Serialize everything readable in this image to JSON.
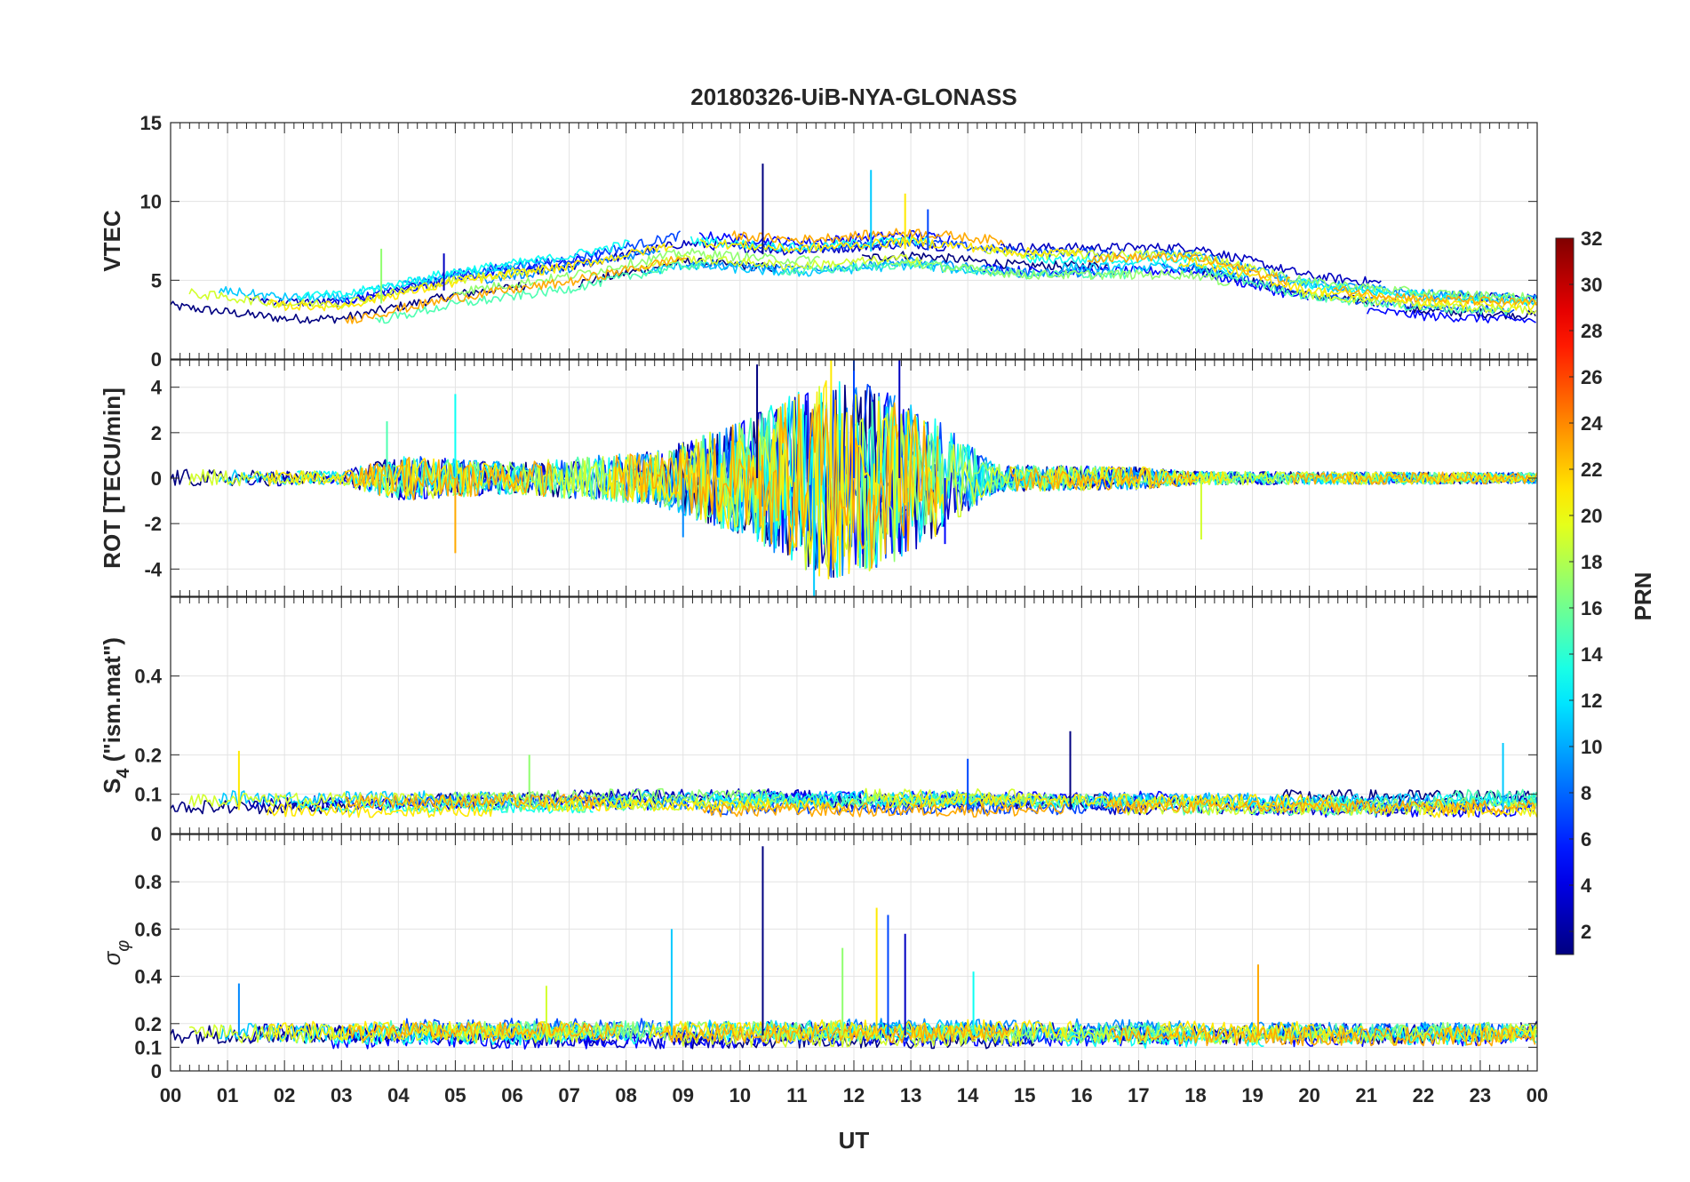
{
  "chart_data": {
    "title": "20180326-UiB-NYA-GLONASS",
    "xlabel": "UT",
    "xlim": [
      0,
      24
    ],
    "xticklabels": [
      "00",
      "01",
      "02",
      "03",
      "04",
      "05",
      "06",
      "07",
      "08",
      "09",
      "10",
      "11",
      "12",
      "13",
      "14",
      "15",
      "16",
      "17",
      "18",
      "19",
      "20",
      "21",
      "22",
      "23",
      "00"
    ],
    "colorbar": {
      "label": "PRN",
      "range": [
        1,
        32
      ],
      "ticks": [
        "2",
        "4",
        "6",
        "8",
        "10",
        "12",
        "14",
        "16",
        "18",
        "20",
        "22",
        "24",
        "26",
        "28",
        "30",
        "32"
      ]
    },
    "panels": [
      {
        "id": "vtec",
        "type": "line",
        "ylabel": "VTEC",
        "ylim": [
          0,
          15
        ],
        "yticks": [
          0,
          5,
          10,
          15
        ],
        "yticklabels": [
          "0",
          "5",
          "10",
          "15"
        ],
        "profile_hours": [
          0,
          2,
          3,
          5,
          7,
          9,
          11,
          13,
          15,
          18,
          20,
          22,
          24
        ],
        "profile_values": [
          3.8,
          3.0,
          3.0,
          4.5,
          5.5,
          7.0,
          6.5,
          7.0,
          6.3,
          6.3,
          4.5,
          3.8,
          3.5
        ],
        "spikes": [
          [
            10.4,
            12.4
          ],
          [
            12.3,
            12.0
          ],
          [
            12.9,
            10.5
          ],
          [
            13.3,
            9.5
          ],
          [
            3.7,
            7.0
          ],
          [
            4.8,
            6.7
          ]
        ]
      },
      {
        "id": "rot",
        "type": "line",
        "ylabel": "ROT [TECU/min]",
        "ylim": [
          -5.2,
          5.2
        ],
        "yticks": [
          -4,
          -2,
          0,
          2,
          4
        ],
        "yticklabels": [
          "-4",
          "-2",
          "0",
          "2",
          "4"
        ],
        "profile_hours": [
          0,
          3,
          4,
          6,
          8.5,
          10,
          11.5,
          12.5,
          13.5,
          14.5,
          17,
          18,
          24
        ],
        "profile_values": [
          0.4,
          0.3,
          1.0,
          0.7,
          1.2,
          2.5,
          4.5,
          4.0,
          2.5,
          0.6,
          0.5,
          0.3,
          0.25
        ],
        "spikes": [
          [
            10.3,
            5.0
          ],
          [
            11.3,
            -5.2
          ],
          [
            11.6,
            5.2
          ],
          [
            12.0,
            5.2
          ],
          [
            12.2,
            -4.0
          ],
          [
            12.8,
            5.2
          ],
          [
            5.0,
            3.7
          ],
          [
            5.0,
            -3.3
          ],
          [
            9.0,
            -2.6
          ],
          [
            18.1,
            -2.7
          ],
          [
            13.6,
            -2.9
          ],
          [
            3.8,
            2.5
          ]
        ]
      },
      {
        "id": "s4",
        "type": "line",
        "ylabel": "S4 (\"ism.mat\")",
        "ylabel_main": "S",
        "ylabel_sub": "4",
        "ylabel_tail": " (\"ism.mat\")",
        "ylim": [
          0,
          0.6
        ],
        "yticks": [
          0,
          0.1,
          0.2,
          0.4
        ],
        "yticklabels": [
          "0",
          "0.1",
          "0.2",
          "0.4"
        ],
        "profile_hours": [
          0,
          24
        ],
        "profile_values": [
          0.06,
          0.06
        ],
        "spikes": [
          [
            15.8,
            0.26
          ],
          [
            23.4,
            0.23
          ],
          [
            1.2,
            0.21
          ],
          [
            14.0,
            0.19
          ],
          [
            6.3,
            0.2
          ]
        ]
      },
      {
        "id": "sigma-phi",
        "type": "line",
        "ylabel": "σφ",
        "ylabel_main": "σ",
        "ylabel_sub": "φ",
        "ylim": [
          0,
          1
        ],
        "yticks": [
          0,
          0.1,
          0.2,
          0.4,
          0.6,
          0.8
        ],
        "yticklabels": [
          "0",
          "0.1",
          "0.2",
          "0.4",
          "0.6",
          "0.8"
        ],
        "profile_hours": [
          0,
          24
        ],
        "profile_values": [
          0.15,
          0.15
        ],
        "spikes": [
          [
            10.4,
            0.95
          ],
          [
            8.8,
            0.6
          ],
          [
            12.4,
            0.69
          ],
          [
            12.6,
            0.66
          ],
          [
            11.8,
            0.52
          ],
          [
            12.9,
            0.58
          ],
          [
            14.1,
            0.42
          ],
          [
            19.1,
            0.45
          ],
          [
            1.2,
            0.37
          ],
          [
            6.6,
            0.36
          ]
        ]
      }
    ],
    "series_prns": [
      1,
      3,
      5,
      7,
      9,
      11,
      13,
      15,
      17,
      19,
      21,
      23
    ]
  }
}
